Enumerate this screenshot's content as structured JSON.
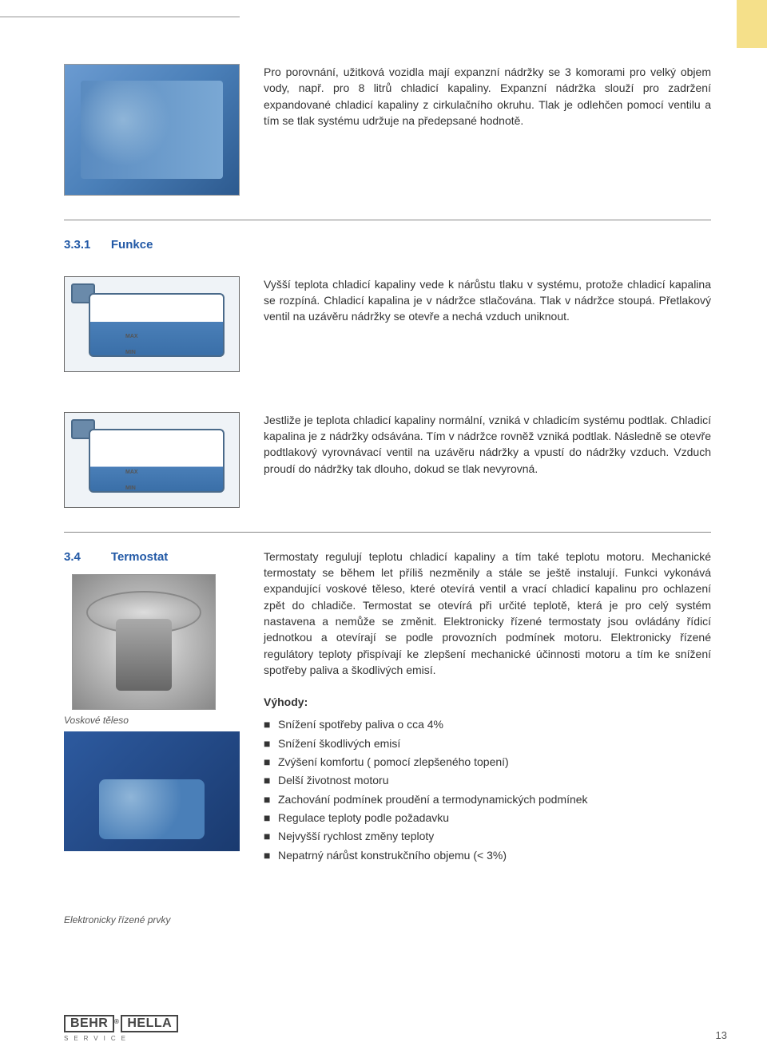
{
  "section1": {
    "text": "Pro porovnání, užitková vozidla mají expanzní nádržky se 3 komorami pro velký objem vody, např. pro 8 litrů chladicí kapaliny. Expanzní nádržka slouží pro zadržení expandované chladicí kapaliny z cirkulačního okruhu. Tlak je odlehčen pomocí ventilu a tím se tlak systému udržuje na předepsané hodnotě."
  },
  "section331": {
    "num": "3.3.1",
    "title": "Funkce",
    "para1": "Vyšší teplota chladicí kapaliny vede k nárůstu tlaku v systému, protože chladicí kapalina se rozpíná. Chladicí kapalina je v nádržce stlačována. Tlak v nádržce stoupá. Přetlakový ventil na uzávěru nádržky se otevře a nechá vzduch uniknout.",
    "para2": "Jestliže je teplota chladicí kapaliny normální, vzniká v chladicím systému podtlak. Chladicí kapalina je z nádržky odsávána. Tím v nádržce rovněž vzniká podtlak. Následně se otevře podtlakový vyrovnávací ventil na uzávěru nádržky a vpustí do nádržky vzduch. Vzduch proudí do nádržky tak dlouho, dokud se tlak nevyrovná.",
    "tank_max": "MAX",
    "tank_min": "MIN"
  },
  "section34": {
    "num": "3.4",
    "title": "Termostat",
    "caption1": "Voskové těleso",
    "caption2": "Elektronicky řízené prvky",
    "para": "Termostaty regulují teplotu chladicí kapaliny a tím také teplotu motoru. Mechanické termostaty se během let příliš nezměnily a stále se ještě instalují. Funkci vykonává expandující voskové těleso, které otevírá ventil a vrací chladicí kapalinu pro ochlazení zpět do chladiče. Termostat se otevírá při určité teplotě, která je pro celý systém nastavena a nemůže se změnit. Elektronicky řízené termostaty jsou ovládány řídicí jednotkou a otevírají se podle provozních podmínek motoru. Elektronicky řízené regulátory teploty přispívají ke zlepšení mechanické účinnosti motoru a tím ke snížení spotřeby paliva a škodlivých emisí.",
    "advantages_title": "Výhody:",
    "advantages": [
      "Snížení spotřeby paliva o cca 4%",
      "Snížení škodlivých emisí",
      "Zvýšení komfortu ( pomocí zlepšeného topení)",
      "Delší životnost motoru",
      "Zachování podmínek proudění a termodynamických podmínek",
      "Regulace teploty podle požadavku",
      "Nejvyšší rychlost změny teploty",
      "Nepatrný nárůst konstrukčního objemu (< 3%)"
    ]
  },
  "footer": {
    "logo1": "BEHR",
    "logo2": "HELLA",
    "sub": "SERVICE",
    "page": "13"
  }
}
